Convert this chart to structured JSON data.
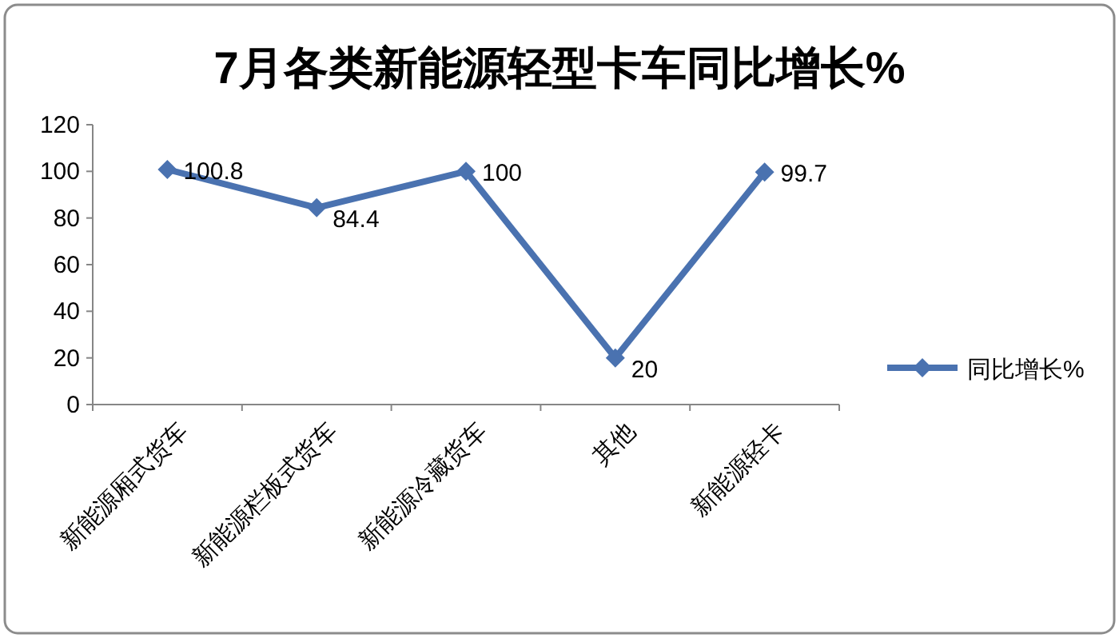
{
  "chart_data": {
    "type": "line",
    "title": "7月各类新能源轻型卡车同比增长%",
    "categories": [
      "新能源厢式货车",
      "新能源栏板式货车",
      "新能源冷藏货车",
      "其他",
      "新能源轻卡"
    ],
    "series": [
      {
        "name": "同比增长%",
        "color": "#4a72b0",
        "values": [
          100.8,
          84.4,
          100,
          20,
          99.7
        ]
      }
    ],
    "ylim": [
      0,
      120
    ],
    "yticks": [
      0,
      20,
      40,
      60,
      80,
      100,
      120
    ],
    "grid": false,
    "legend": "right",
    "marker": "diamond",
    "line_style": "solid",
    "data_labels": true
  }
}
